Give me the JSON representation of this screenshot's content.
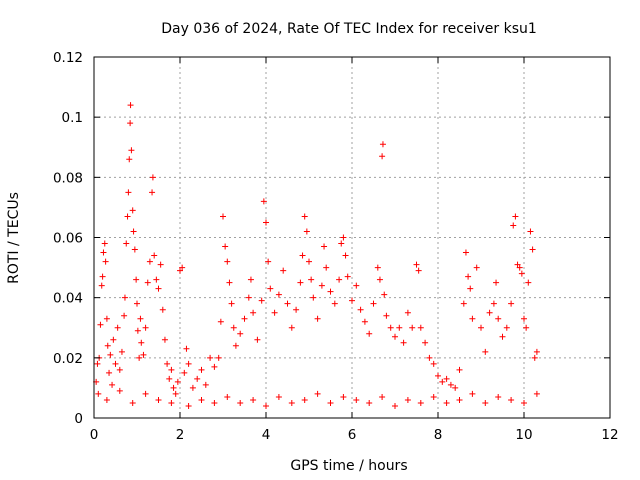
{
  "chart_data": {
    "type": "scatter",
    "title": "Day 036 of 2024, Rate Of TEC Index for receiver ksu1",
    "xlabel": "GPS time / hours",
    "ylabel": "ROTI / TECUs",
    "xlim": [
      0,
      12
    ],
    "ylim": [
      0,
      0.12
    ],
    "xticks": [
      0,
      2,
      4,
      6,
      8,
      10,
      12
    ],
    "xtick_labels": [
      "0",
      "2",
      "4",
      "6",
      "8",
      "10",
      "12"
    ],
    "yticks": [
      0,
      0.02,
      0.04,
      0.06,
      0.08,
      0.1,
      0.12
    ],
    "ytick_labels": [
      "0",
      "0.02",
      "0.04",
      "0.06",
      "0.08",
      "0.1",
      "0.12"
    ],
    "grid": true,
    "marker": "+",
    "color": "#ff0000",
    "series": [
      {
        "name": "ROTI",
        "points": [
          [
            0.05,
            0.012
          ],
          [
            0.08,
            0.018
          ],
          [
            0.1,
            0.008
          ],
          [
            0.12,
            0.02
          ],
          [
            0.15,
            0.031
          ],
          [
            0.18,
            0.044
          ],
          [
            0.2,
            0.047
          ],
          [
            0.22,
            0.055
          ],
          [
            0.25,
            0.058
          ],
          [
            0.27,
            0.052
          ],
          [
            0.3,
            0.033
          ],
          [
            0.32,
            0.024
          ],
          [
            0.35,
            0.015
          ],
          [
            0.38,
            0.021
          ],
          [
            0.42,
            0.011
          ],
          [
            0.45,
            0.026
          ],
          [
            0.5,
            0.018
          ],
          [
            0.55,
            0.03
          ],
          [
            0.6,
            0.016
          ],
          [
            0.65,
            0.022
          ],
          [
            0.7,
            0.034
          ],
          [
            0.72,
            0.04
          ],
          [
            0.75,
            0.058
          ],
          [
            0.78,
            0.067
          ],
          [
            0.8,
            0.075
          ],
          [
            0.82,
            0.086
          ],
          [
            0.84,
            0.098
          ],
          [
            0.85,
            0.104
          ],
          [
            0.87,
            0.089
          ],
          [
            0.9,
            0.069
          ],
          [
            0.92,
            0.062
          ],
          [
            0.95,
            0.056
          ],
          [
            0.98,
            0.046
          ],
          [
            1.0,
            0.038
          ],
          [
            1.02,
            0.029
          ],
          [
            1.05,
            0.02
          ],
          [
            1.08,
            0.033
          ],
          [
            1.1,
            0.025
          ],
          [
            1.15,
            0.021
          ],
          [
            1.2,
            0.03
          ],
          [
            1.25,
            0.045
          ],
          [
            1.3,
            0.052
          ],
          [
            1.35,
            0.075
          ],
          [
            1.37,
            0.08
          ],
          [
            1.4,
            0.054
          ],
          [
            1.45,
            0.046
          ],
          [
            1.5,
            0.043
          ],
          [
            1.55,
            0.051
          ],
          [
            1.6,
            0.036
          ],
          [
            1.65,
            0.026
          ],
          [
            1.7,
            0.018
          ],
          [
            1.75,
            0.013
          ],
          [
            1.8,
            0.016
          ],
          [
            1.85,
            0.01
          ],
          [
            1.9,
            0.008
          ],
          [
            1.95,
            0.012
          ],
          [
            2.0,
            0.049
          ],
          [
            2.05,
            0.05
          ],
          [
            2.1,
            0.015
          ],
          [
            2.15,
            0.023
          ],
          [
            2.2,
            0.018
          ],
          [
            2.3,
            0.01
          ],
          [
            2.4,
            0.013
          ],
          [
            2.5,
            0.016
          ],
          [
            2.6,
            0.011
          ],
          [
            2.7,
            0.02
          ],
          [
            2.8,
            0.017
          ],
          [
            2.9,
            0.02
          ],
          [
            2.95,
            0.032
          ],
          [
            3.0,
            0.067
          ],
          [
            3.05,
            0.057
          ],
          [
            3.1,
            0.052
          ],
          [
            3.15,
            0.045
          ],
          [
            3.2,
            0.038
          ],
          [
            3.25,
            0.03
          ],
          [
            3.3,
            0.024
          ],
          [
            3.4,
            0.028
          ],
          [
            3.5,
            0.033
          ],
          [
            3.6,
            0.04
          ],
          [
            3.65,
            0.046
          ],
          [
            3.7,
            0.035
          ],
          [
            3.8,
            0.026
          ],
          [
            3.9,
            0.039
          ],
          [
            3.95,
            0.072
          ],
          [
            4.0,
            0.065
          ],
          [
            4.05,
            0.052
          ],
          [
            4.1,
            0.043
          ],
          [
            4.2,
            0.035
          ],
          [
            4.3,
            0.041
          ],
          [
            4.4,
            0.049
          ],
          [
            4.5,
            0.038
          ],
          [
            4.6,
            0.03
          ],
          [
            4.7,
            0.036
          ],
          [
            4.8,
            0.045
          ],
          [
            4.85,
            0.054
          ],
          [
            4.9,
            0.067
          ],
          [
            4.95,
            0.062
          ],
          [
            5.0,
            0.052
          ],
          [
            5.05,
            0.046
          ],
          [
            5.1,
            0.04
          ],
          [
            5.2,
            0.033
          ],
          [
            5.3,
            0.044
          ],
          [
            5.35,
            0.057
          ],
          [
            5.4,
            0.05
          ],
          [
            5.5,
            0.042
          ],
          [
            5.6,
            0.038
          ],
          [
            5.7,
            0.046
          ],
          [
            5.75,
            0.058
          ],
          [
            5.8,
            0.06
          ],
          [
            5.85,
            0.054
          ],
          [
            5.9,
            0.047
          ],
          [
            6.0,
            0.039
          ],
          [
            6.1,
            0.044
          ],
          [
            6.2,
            0.036
          ],
          [
            6.3,
            0.032
          ],
          [
            6.4,
            0.028
          ],
          [
            6.5,
            0.038
          ],
          [
            6.6,
            0.05
          ],
          [
            6.65,
            0.046
          ],
          [
            6.7,
            0.087
          ],
          [
            6.72,
            0.091
          ],
          [
            6.75,
            0.041
          ],
          [
            6.8,
            0.034
          ],
          [
            6.9,
            0.03
          ],
          [
            7.0,
            0.027
          ],
          [
            7.1,
            0.03
          ],
          [
            7.2,
            0.025
          ],
          [
            7.3,
            0.035
          ],
          [
            7.4,
            0.03
          ],
          [
            7.5,
            0.051
          ],
          [
            7.55,
            0.049
          ],
          [
            7.6,
            0.03
          ],
          [
            7.7,
            0.025
          ],
          [
            7.8,
            0.02
          ],
          [
            7.9,
            0.018
          ],
          [
            8.0,
            0.014
          ],
          [
            8.1,
            0.012
          ],
          [
            8.2,
            0.013
          ],
          [
            8.3,
            0.011
          ],
          [
            8.4,
            0.01
          ],
          [
            8.5,
            0.016
          ],
          [
            8.6,
            0.038
          ],
          [
            8.65,
            0.055
          ],
          [
            8.7,
            0.047
          ],
          [
            8.75,
            0.043
          ],
          [
            8.8,
            0.033
          ],
          [
            8.9,
            0.05
          ],
          [
            9.0,
            0.03
          ],
          [
            9.1,
            0.022
          ],
          [
            9.2,
            0.035
          ],
          [
            9.3,
            0.038
          ],
          [
            9.35,
            0.045
          ],
          [
            9.4,
            0.033
          ],
          [
            9.5,
            0.027
          ],
          [
            9.6,
            0.03
          ],
          [
            9.7,
            0.038
          ],
          [
            9.75,
            0.064
          ],
          [
            9.8,
            0.067
          ],
          [
            9.85,
            0.051
          ],
          [
            9.9,
            0.05
          ],
          [
            9.95,
            0.048
          ],
          [
            10.0,
            0.033
          ],
          [
            10.05,
            0.03
          ],
          [
            10.1,
            0.045
          ],
          [
            10.15,
            0.062
          ],
          [
            10.2,
            0.056
          ],
          [
            10.25,
            0.02
          ],
          [
            10.3,
            0.022
          ],
          [
            0.3,
            0.006
          ],
          [
            0.6,
            0.009
          ],
          [
            0.9,
            0.005
          ],
          [
            1.2,
            0.008
          ],
          [
            1.5,
            0.006
          ],
          [
            1.8,
            0.005
          ],
          [
            2.2,
            0.004
          ],
          [
            2.5,
            0.006
          ],
          [
            2.8,
            0.005
          ],
          [
            3.1,
            0.007
          ],
          [
            3.4,
            0.005
          ],
          [
            3.7,
            0.006
          ],
          [
            4.0,
            0.004
          ],
          [
            4.3,
            0.007
          ],
          [
            4.6,
            0.005
          ],
          [
            4.9,
            0.006
          ],
          [
            5.2,
            0.008
          ],
          [
            5.5,
            0.005
          ],
          [
            5.8,
            0.007
          ],
          [
            6.1,
            0.006
          ],
          [
            6.4,
            0.005
          ],
          [
            6.7,
            0.007
          ],
          [
            7.0,
            0.004
          ],
          [
            7.3,
            0.006
          ],
          [
            7.6,
            0.005
          ],
          [
            7.9,
            0.007
          ],
          [
            8.2,
            0.005
          ],
          [
            8.5,
            0.006
          ],
          [
            8.8,
            0.008
          ],
          [
            9.1,
            0.005
          ],
          [
            9.4,
            0.007
          ],
          [
            9.7,
            0.006
          ],
          [
            10.0,
            0.005
          ],
          [
            10.3,
            0.008
          ]
        ]
      }
    ]
  }
}
